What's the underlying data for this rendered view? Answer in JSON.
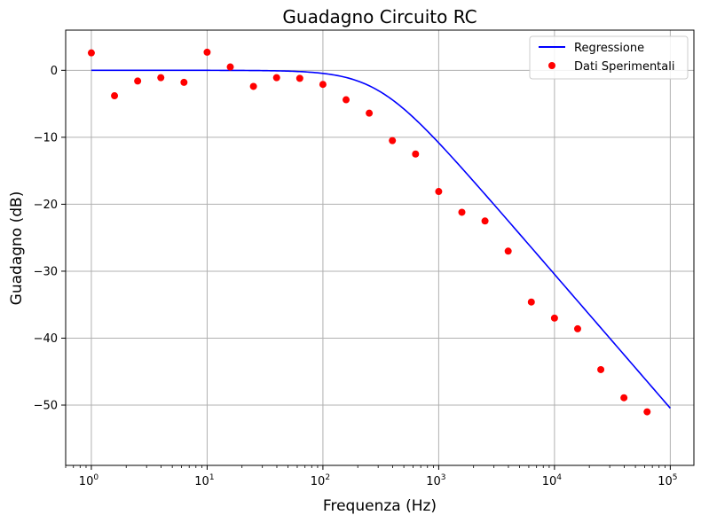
{
  "chart_data": {
    "type": "scatter",
    "title": "Guadagno Circuito RC",
    "xlabel": "Frequenza (Hz)",
    "ylabel": "Guadagno (dB)",
    "xscale": "log",
    "xlim": [
      0.6,
      160000
    ],
    "ylim": [
      -59,
      6
    ],
    "grid": true,
    "legend_position": "top-right",
    "x_ticks": [
      {
        "exp": "0",
        "value": 1
      },
      {
        "exp": "1",
        "value": 10
      },
      {
        "exp": "2",
        "value": 100
      },
      {
        "exp": "3",
        "value": 1000
      },
      {
        "exp": "4",
        "value": 10000
      },
      {
        "exp": "5",
        "value": 100000
      }
    ],
    "x_tick_base": "10",
    "y_ticks": [
      0,
      -10,
      -20,
      -30,
      -40,
      -50
    ],
    "y_tick_labels": [
      "0",
      "−10",
      "−20",
      "−30",
      "−40",
      "−50"
    ],
    "series": [
      {
        "name": "Regressione",
        "kind": "line",
        "color": "#0000ff",
        "model": "first-order low-pass",
        "cutoff_hz": 300,
        "x_range": [
          1,
          100000
        ]
      },
      {
        "name": "Dati Sperimentali",
        "kind": "scatter",
        "color": "#ff0000",
        "x": [
          1,
          1.585,
          2.512,
          3.981,
          6.31,
          10,
          15.85,
          25.12,
          39.81,
          63.1,
          100,
          158.5,
          251.2,
          398.1,
          631,
          1000,
          1585,
          2512,
          3981,
          6310,
          10000,
          15850,
          25120,
          39810,
          63100
        ],
        "y": [
          2.6,
          -3.8,
          -1.6,
          -1.1,
          -1.8,
          2.7,
          0.5,
          -2.4,
          -1.1,
          -1.2,
          -2.1,
          -4.4,
          -6.4,
          -10.5,
          -12.5,
          -18.1,
          -21.2,
          -22.5,
          -27.0,
          -34.6,
          -37.0,
          -38.6,
          -44.7,
          -48.9,
          -51.0
        ]
      }
    ]
  }
}
